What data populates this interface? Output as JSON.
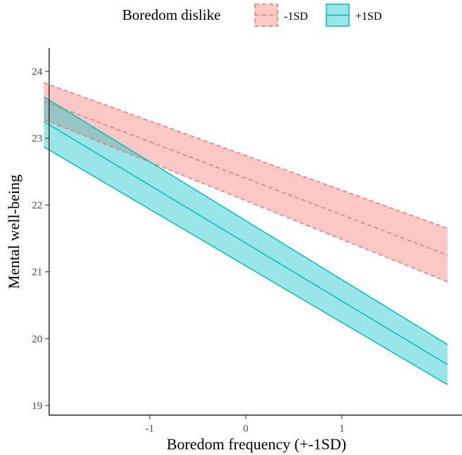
{
  "chart_data": {
    "type": "line",
    "xlabel": "Boredom frequency (+-1SD)",
    "ylabel": "Mental well-being",
    "xlim": [
      -2.05,
      2.25
    ],
    "ylim": [
      18.85,
      24.35
    ],
    "x_ticks": [
      -1,
      0,
      1
    ],
    "x_tick_labels": [
      "-1",
      "0",
      "1"
    ],
    "y_ticks": [
      19,
      20,
      21,
      22,
      23,
      24
    ],
    "y_tick_labels": [
      "19",
      "20",
      "21",
      "22",
      "23",
      "24"
    ],
    "grid": false,
    "legend": {
      "title": "Boredom dislike",
      "position": "top"
    },
    "series": [
      {
        "name": "-1SD",
        "color": "#F8766D",
        "fill": "#F8766D",
        "line_style": "dashed",
        "x": [
          -2.1,
          2.1
        ],
        "fit": [
          23.55,
          21.25
        ],
        "lower": [
          23.28,
          20.85
        ],
        "upper": [
          23.83,
          21.65
        ]
      },
      {
        "name": "+1SD",
        "color": "#00BFC4",
        "fill": "#00BFC4",
        "line_style": "solid",
        "x": [
          -2.1,
          2.1
        ],
        "fit": [
          23.25,
          19.61
        ],
        "lower": [
          22.87,
          19.31
        ],
        "upper": [
          23.62,
          19.91
        ]
      }
    ]
  }
}
